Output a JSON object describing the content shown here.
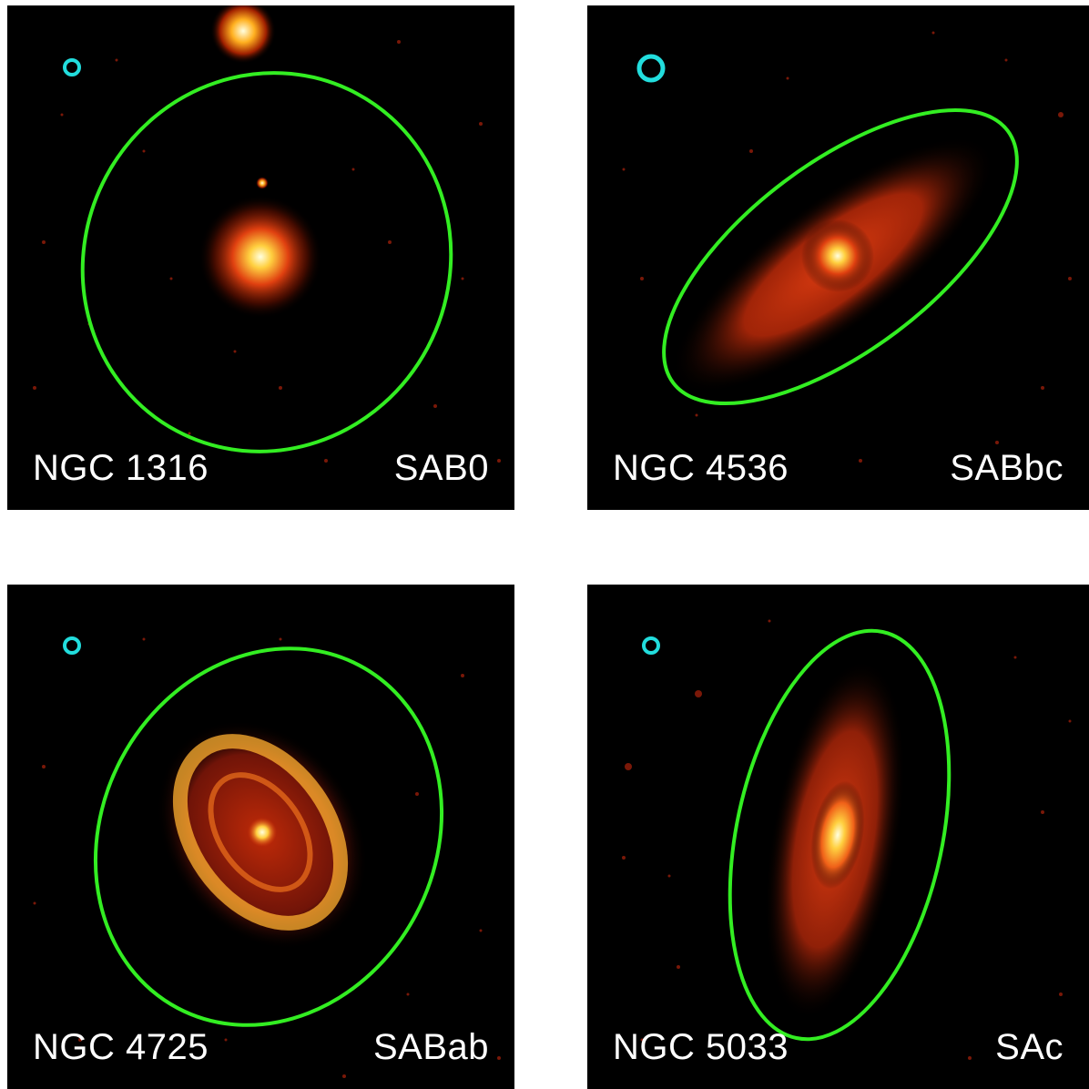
{
  "colors": {
    "ellipse": "#33ee22",
    "beam": "#22dddd",
    "background": "#000000",
    "label_text": "#ffffff"
  },
  "panels": [
    {
      "name": "NGC 1316",
      "type": "SAB0"
    },
    {
      "name": "NGC 4536",
      "type": "SABbc"
    },
    {
      "name": "NGC 4725",
      "type": "SABab"
    },
    {
      "name": "NGC 5033",
      "type": "SAc"
    }
  ]
}
